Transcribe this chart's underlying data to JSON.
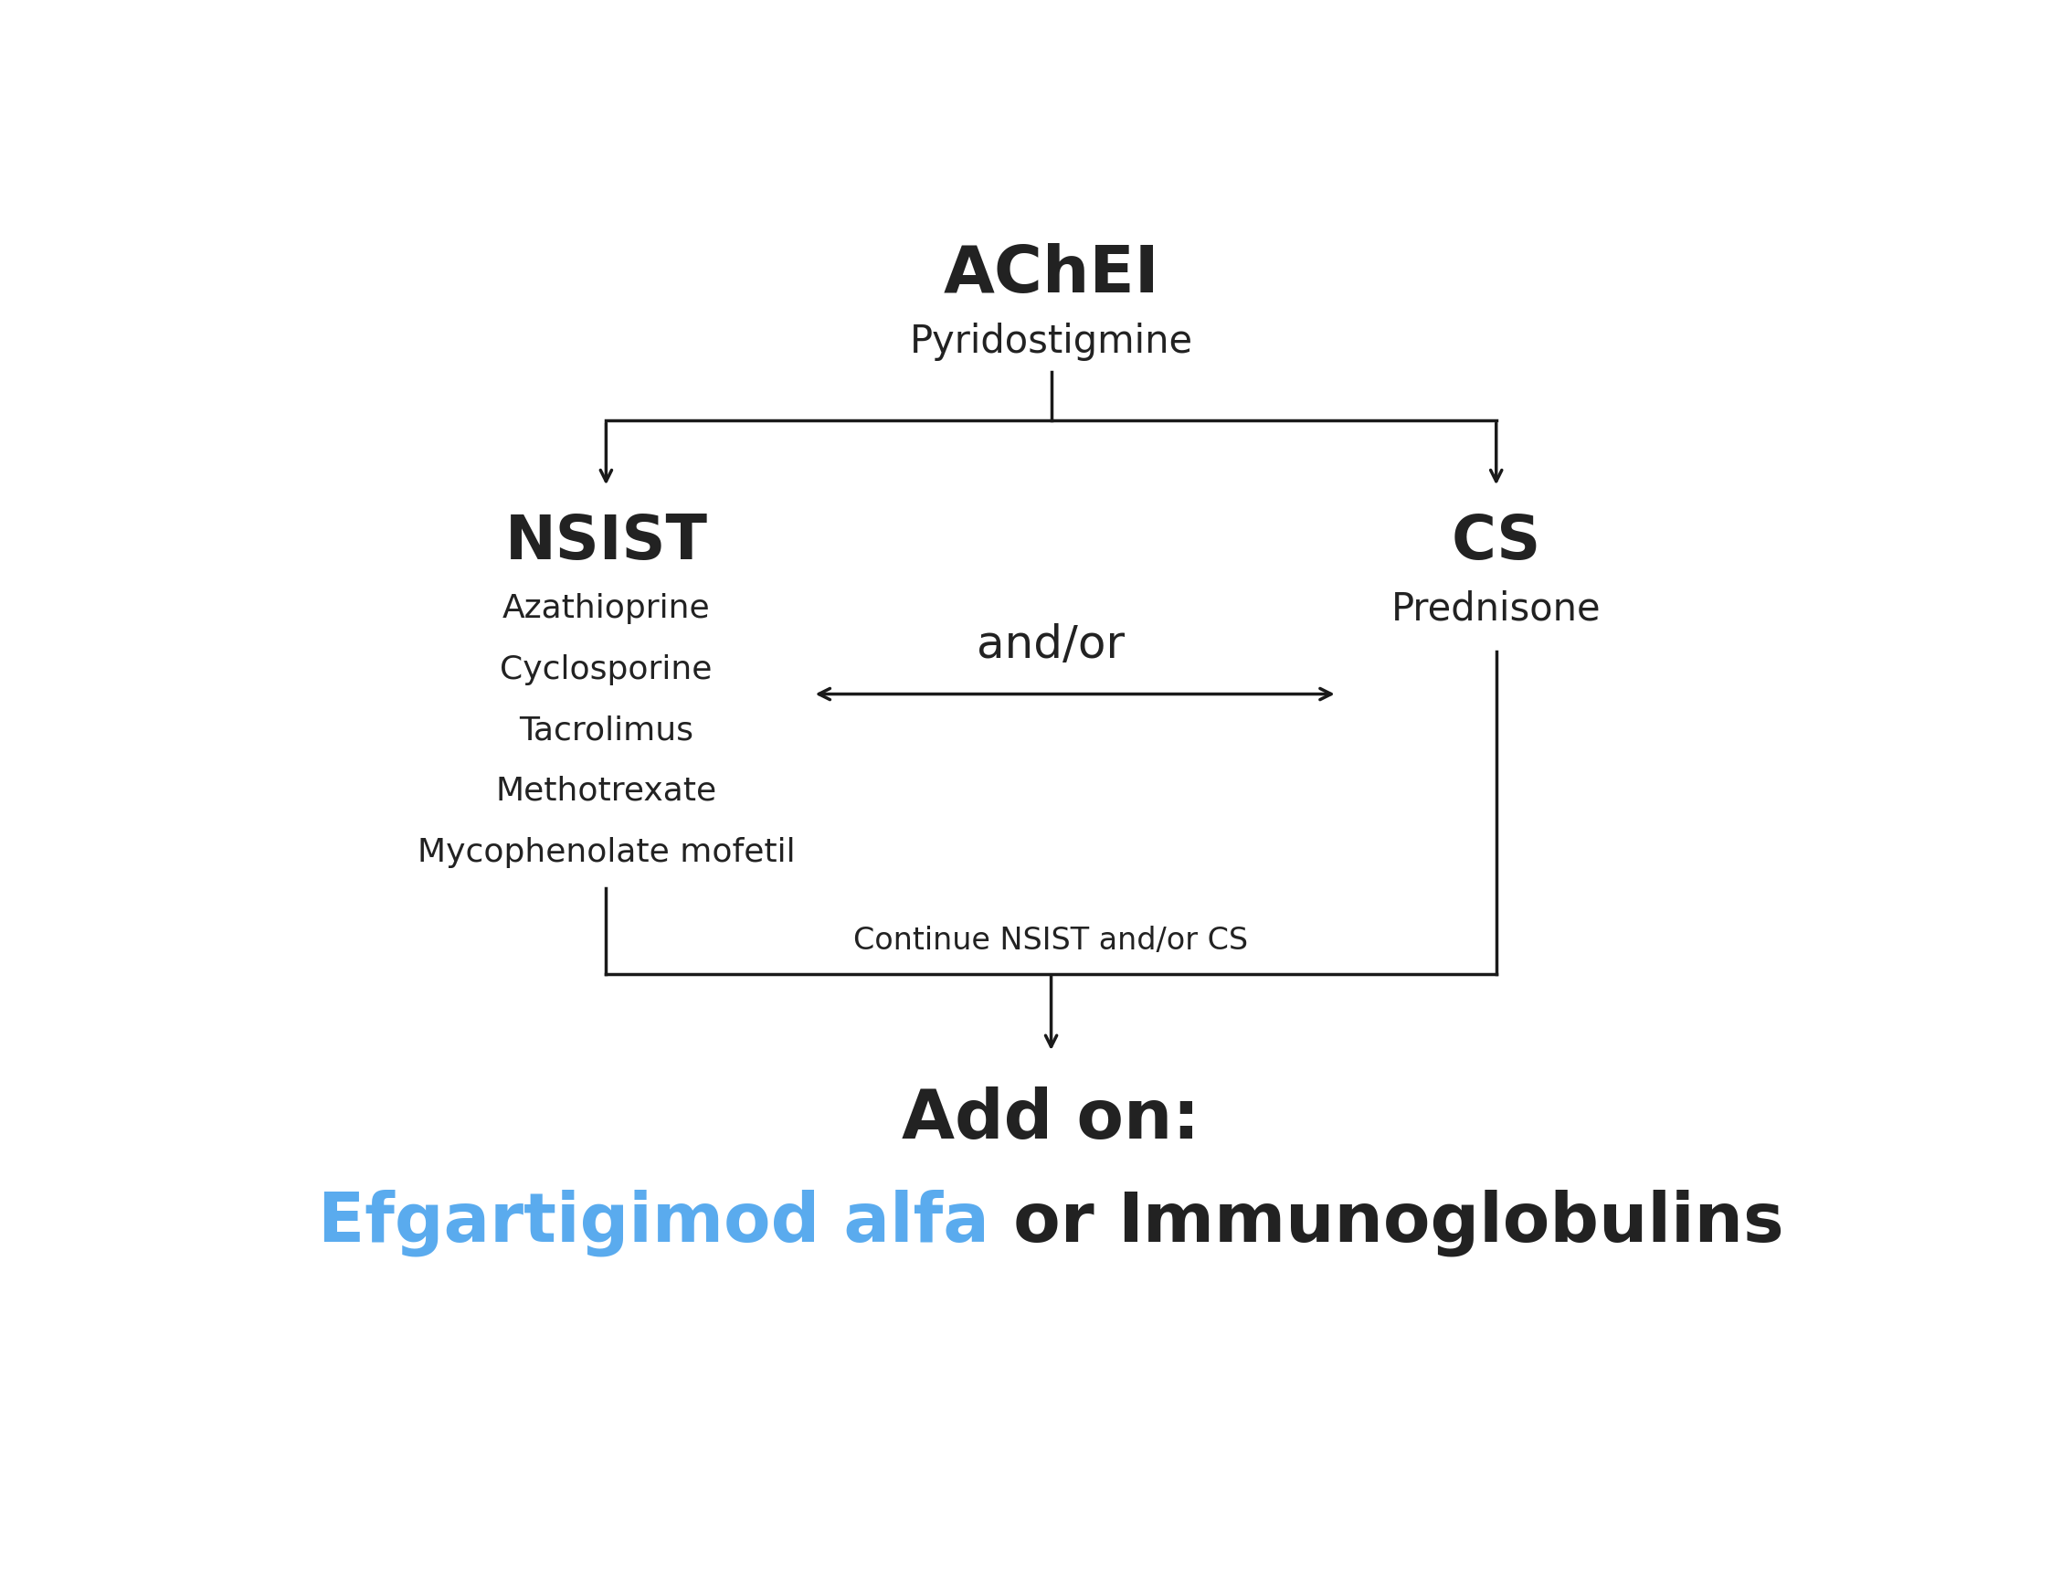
{
  "background_color": "#ffffff",
  "achei_label": "AChEI",
  "achei_sublabel": "Pyridostigmine",
  "nsist_label": "NSIST",
  "nsist_drugs": [
    "Azathioprine",
    "Cyclosporine",
    "Tacrolimus",
    "Methotrexate",
    "Mycophenolate mofetil"
  ],
  "cs_label": "CS",
  "cs_sublabel": "Prednisone",
  "andor_label": "and/or",
  "continue_label": "Continue NSIST and/or CS",
  "addon_label": "Add on:",
  "efgartigimod_label": "Efgartigimod alfa",
  "or_label": " or ",
  "immunoglobulins_label": "Immunoglobulins",
  "efgartigimod_color": "#5aabee",
  "text_color": "#222222",
  "line_color": "#1a1a1a",
  "achei_fontsize": 52,
  "achei_sub_fontsize": 30,
  "nsist_fontsize": 48,
  "nsist_drug_fontsize": 26,
  "cs_fontsize": 48,
  "cs_sub_fontsize": 30,
  "andor_fontsize": 36,
  "continue_fontsize": 24,
  "addon_fontsize": 54,
  "efg_fontsize": 54
}
